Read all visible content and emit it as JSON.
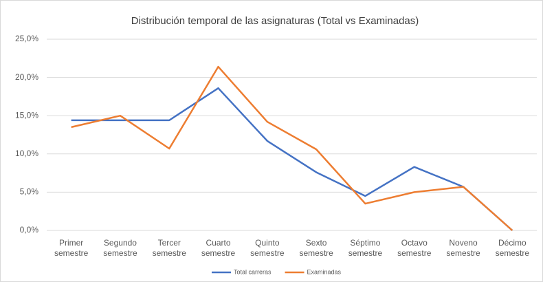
{
  "chart_data": {
    "type": "line",
    "title": "Distribución temporal de las asignaturas (Total vs Examinadas)",
    "categories": [
      "Primer semestre",
      "Segundo semestre",
      "Tercer semestre",
      "Cuarto semestre",
      "Quinto semestre",
      "Sexto semestre",
      "Séptimo semestre",
      "Octavo semestre",
      "Noveno semestre",
      "Décimo semestre"
    ],
    "series": [
      {
        "name": "Total carreras",
        "color": "#4472c4",
        "values": [
          14.4,
          14.4,
          14.4,
          18.6,
          11.7,
          7.6,
          4.5,
          8.3,
          5.7,
          0
        ]
      },
      {
        "name": "Examinadas",
        "color": "#ed7d31",
        "values": [
          13.5,
          15.0,
          10.7,
          21.4,
          14.2,
          10.6,
          3.5,
          5.0,
          5.7,
          0
        ]
      }
    ],
    "ylim": [
      0,
      25
    ],
    "yticks": [
      {
        "value": 0,
        "label": "0,0%"
      },
      {
        "value": 5,
        "label": "5,0%"
      },
      {
        "value": 10,
        "label": "10,0%"
      },
      {
        "value": 15,
        "label": "15,0%"
      },
      {
        "value": 20,
        "label": "20,0%"
      },
      {
        "value": 25,
        "label": "25,0%"
      }
    ],
    "grid": true,
    "legend": "bottom"
  }
}
